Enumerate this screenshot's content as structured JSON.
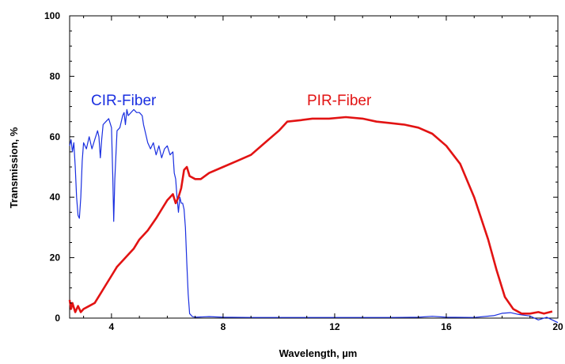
{
  "chart_data": {
    "type": "line",
    "title": "",
    "xlabel": "Wavelength, µm",
    "ylabel": "Transmission, %",
    "xlim": [
      2.5,
      20
    ],
    "ylim": [
      0,
      100
    ],
    "xticks": [
      "4",
      "8",
      "12",
      "16",
      "20"
    ],
    "yticks": [
      "0",
      "20",
      "40",
      "60",
      "80",
      "100"
    ],
    "grid": false,
    "legend": "inline labels",
    "series": [
      {
        "name": "CIR-Fiber",
        "color": "#1a2fe0",
        "points": [
          [
            2.5,
            57
          ],
          [
            2.55,
            59
          ],
          [
            2.6,
            55
          ],
          [
            2.65,
            58
          ],
          [
            2.7,
            50
          ],
          [
            2.75,
            40
          ],
          [
            2.8,
            34
          ],
          [
            2.85,
            33
          ],
          [
            2.9,
            40
          ],
          [
            2.95,
            52
          ],
          [
            3.0,
            58
          ],
          [
            3.05,
            57
          ],
          [
            3.1,
            56
          ],
          [
            3.2,
            60
          ],
          [
            3.3,
            56
          ],
          [
            3.4,
            59
          ],
          [
            3.5,
            62
          ],
          [
            3.55,
            60
          ],
          [
            3.6,
            53
          ],
          [
            3.65,
            59
          ],
          [
            3.7,
            64
          ],
          [
            3.8,
            65
          ],
          [
            3.9,
            66
          ],
          [
            4.0,
            63
          ],
          [
            4.05,
            46
          ],
          [
            4.08,
            32
          ],
          [
            4.12,
            46
          ],
          [
            4.2,
            62
          ],
          [
            4.3,
            63
          ],
          [
            4.4,
            67
          ],
          [
            4.45,
            68
          ],
          [
            4.5,
            64
          ],
          [
            4.55,
            69
          ],
          [
            4.6,
            67
          ],
          [
            4.7,
            68
          ],
          [
            4.8,
            69
          ],
          [
            4.9,
            68
          ],
          [
            5.0,
            68
          ],
          [
            5.1,
            67
          ],
          [
            5.15,
            64
          ],
          [
            5.2,
            62
          ],
          [
            5.3,
            58
          ],
          [
            5.4,
            56
          ],
          [
            5.5,
            58
          ],
          [
            5.6,
            54
          ],
          [
            5.7,
            57
          ],
          [
            5.8,
            53
          ],
          [
            5.9,
            56
          ],
          [
            6.0,
            57
          ],
          [
            6.1,
            54
          ],
          [
            6.2,
            55
          ],
          [
            6.25,
            48
          ],
          [
            6.3,
            46
          ],
          [
            6.35,
            40
          ],
          [
            6.4,
            35
          ],
          [
            6.45,
            40
          ],
          [
            6.5,
            38
          ],
          [
            6.55,
            38
          ],
          [
            6.6,
            36
          ],
          [
            6.65,
            30
          ],
          [
            6.7,
            18
          ],
          [
            6.75,
            8
          ],
          [
            6.8,
            1.5
          ],
          [
            6.9,
            0.5
          ],
          [
            7.0,
            0.3
          ],
          [
            7.5,
            0.5
          ],
          [
            8,
            0.3
          ],
          [
            9,
            0.2
          ],
          [
            10,
            0.2
          ],
          [
            11,
            0.2
          ],
          [
            12,
            0.2
          ],
          [
            13,
            0.2
          ],
          [
            14,
            0.2
          ],
          [
            15,
            0.3
          ],
          [
            15.5,
            0.6
          ],
          [
            16,
            0.3
          ],
          [
            17,
            0.2
          ],
          [
            17.7,
            0.8
          ],
          [
            18.0,
            1.6
          ],
          [
            18.3,
            1.8
          ],
          [
            18.6,
            1.2
          ],
          [
            19.0,
            0.7
          ],
          [
            19.3,
            -0.6
          ],
          [
            19.6,
            0.3
          ],
          [
            20.0,
            -1.5
          ]
        ]
      },
      {
        "name": "PIR-Fiber",
        "color": "#e21313",
        "points": [
          [
            2.5,
            6
          ],
          [
            2.55,
            3
          ],
          [
            2.6,
            5
          ],
          [
            2.7,
            2
          ],
          [
            2.8,
            4
          ],
          [
            2.9,
            2
          ],
          [
            3.0,
            3
          ],
          [
            3.2,
            4
          ],
          [
            3.4,
            5
          ],
          [
            3.6,
            8
          ],
          [
            3.8,
            11
          ],
          [
            4.0,
            14
          ],
          [
            4.2,
            17
          ],
          [
            4.5,
            20
          ],
          [
            4.8,
            23
          ],
          [
            5.0,
            26
          ],
          [
            5.3,
            29
          ],
          [
            5.6,
            33
          ],
          [
            5.8,
            36
          ],
          [
            6.0,
            39
          ],
          [
            6.2,
            41
          ],
          [
            6.3,
            38
          ],
          [
            6.4,
            40
          ],
          [
            6.5,
            43
          ],
          [
            6.6,
            49
          ],
          [
            6.7,
            50
          ],
          [
            6.8,
            47
          ],
          [
            7.0,
            46
          ],
          [
            7.2,
            46
          ],
          [
            7.5,
            48
          ],
          [
            8.0,
            50
          ],
          [
            8.5,
            52
          ],
          [
            9.0,
            54
          ],
          [
            9.5,
            58
          ],
          [
            10.0,
            62
          ],
          [
            10.3,
            65
          ],
          [
            10.8,
            65.5
          ],
          [
            11.2,
            66
          ],
          [
            11.8,
            66
          ],
          [
            12.4,
            66.5
          ],
          [
            13.0,
            66
          ],
          [
            13.5,
            65
          ],
          [
            14.0,
            64.5
          ],
          [
            14.5,
            64
          ],
          [
            15.0,
            63
          ],
          [
            15.5,
            61
          ],
          [
            16.0,
            57
          ],
          [
            16.5,
            51
          ],
          [
            17.0,
            40
          ],
          [
            17.5,
            26
          ],
          [
            17.8,
            16
          ],
          [
            18.1,
            7
          ],
          [
            18.4,
            3
          ],
          [
            18.7,
            1.5
          ],
          [
            19.0,
            1.5
          ],
          [
            19.3,
            2
          ],
          [
            19.5,
            1.5
          ],
          [
            19.8,
            2.2
          ]
        ]
      }
    ]
  }
}
